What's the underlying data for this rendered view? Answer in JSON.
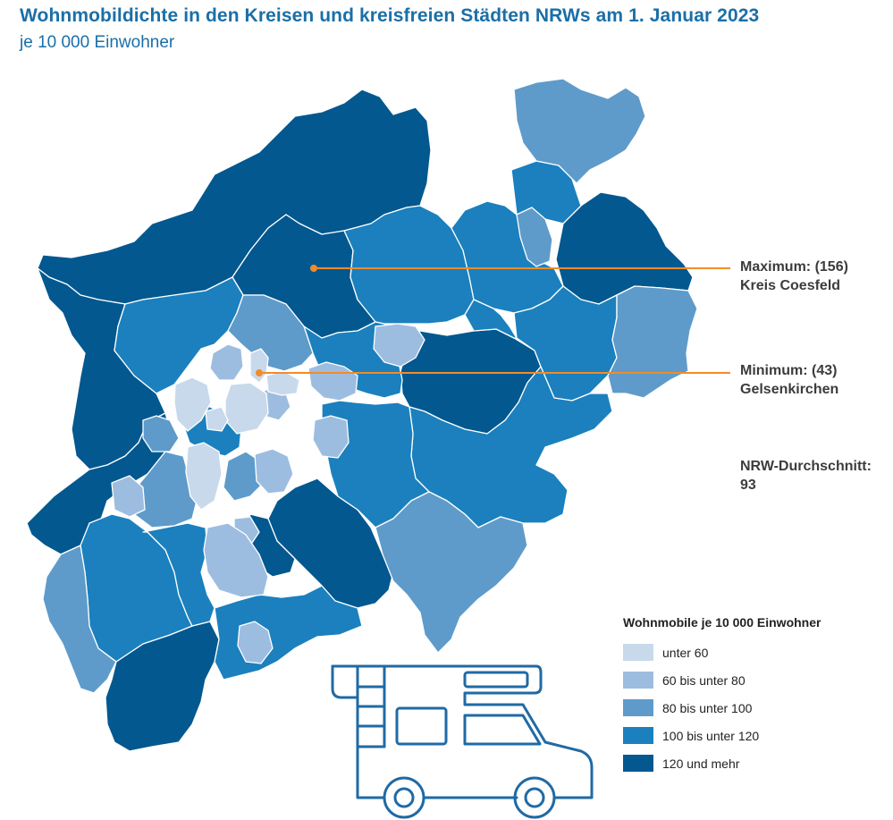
{
  "title": "Wohnmobildichte in den Kreisen und kreisfreien Städten NRWs am 1. Januar 2023",
  "subtitle": "je 10 000 Einwohner",
  "annotations": {
    "maximum": {
      "label": "Maximum: (156)",
      "name": "Kreis Coesfeld"
    },
    "minimum": {
      "label": "Minimum: (43)",
      "name": "Gelsenkirchen"
    },
    "average": {
      "label": "NRW-Durchschnitt:",
      "value": "93"
    }
  },
  "legend": {
    "title": "Wohnmobile je 10 000 Einwohner",
    "classes": [
      {
        "label": "unter 60",
        "color": "#c8d9ec"
      },
      {
        "label": "60 bis unter 80",
        "color": "#9dbde0"
      },
      {
        "label": "80 bis unter 100",
        "color": "#5e9bca"
      },
      {
        "label": "100 bis unter 120",
        "color": "#1b80bd"
      },
      {
        "label": "120 und mehr",
        "color": "#02588f"
      }
    ]
  },
  "colors": {
    "accent": "#f28c28",
    "border": "#ffffff",
    "icon": "#1f6aa5",
    "title": "#1a6fa8"
  },
  "icon": "camper-van-icon"
}
